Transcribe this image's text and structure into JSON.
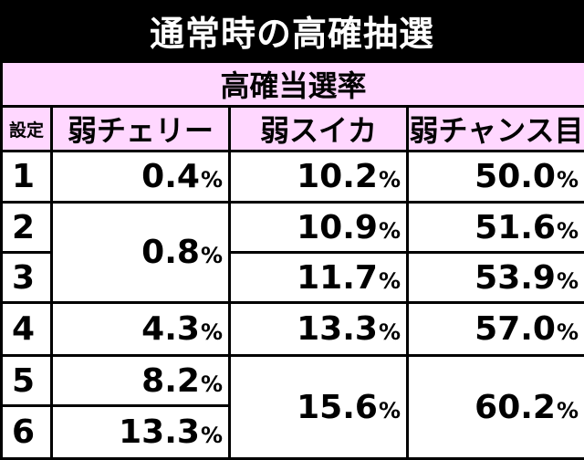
{
  "title": "通常時の高確抽選",
  "table": {
    "subtitle": "高確当選率",
    "headers": {
      "setting": "設定",
      "weak_cherry": "弱チェリー",
      "weak_watermelon": "弱スイカ",
      "weak_chance_eye": "弱チャンス目"
    },
    "percent_sign": "%",
    "rows": [
      {
        "setting": "1",
        "weak_cherry": "0.4",
        "weak_watermelon": "10.2",
        "weak_chance_eye": "50.0"
      },
      {
        "setting": "2",
        "weak_cherry": "0.8",
        "weak_watermelon": "10.9",
        "weak_chance_eye": "51.6"
      },
      {
        "setting": "3",
        "weak_cherry": "0.8",
        "weak_watermelon": "11.7",
        "weak_chance_eye": "53.9"
      },
      {
        "setting": "4",
        "weak_cherry": "4.3",
        "weak_watermelon": "13.3",
        "weak_chance_eye": "57.0"
      },
      {
        "setting": "5",
        "weak_cherry": "8.2",
        "weak_watermelon": "15.6",
        "weak_chance_eye": "60.2"
      },
      {
        "setting": "6",
        "weak_cherry": "13.3",
        "weak_watermelon": "15.6",
        "weak_chance_eye": "60.2"
      }
    ]
  }
}
